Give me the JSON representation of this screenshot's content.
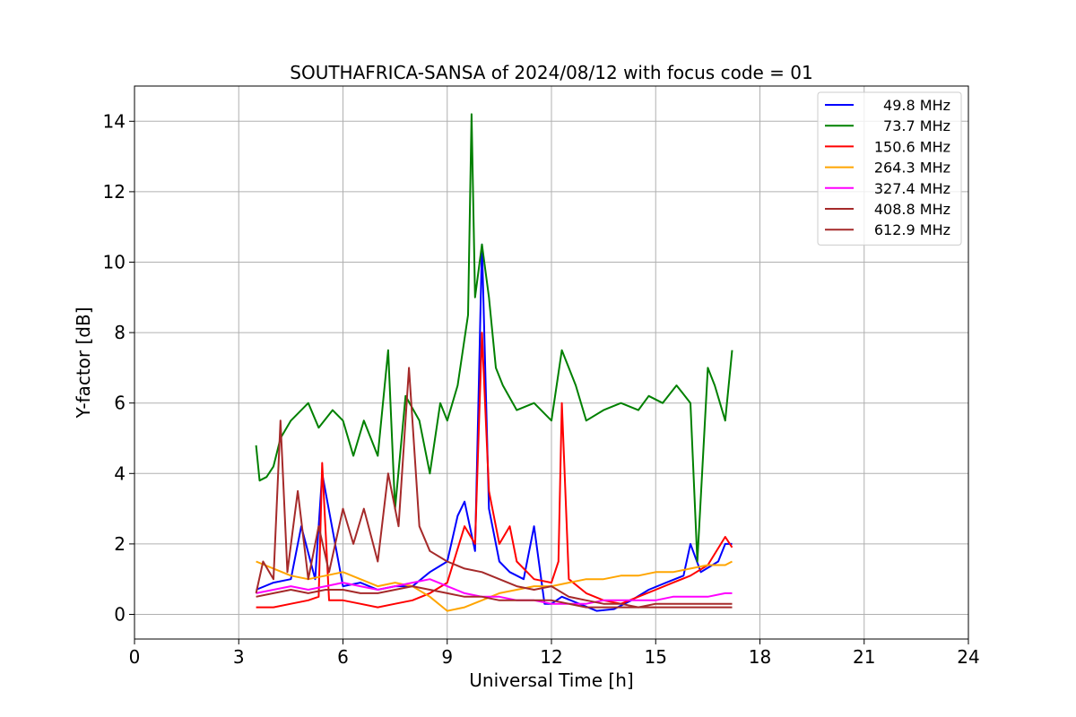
{
  "chart_data": {
    "type": "line",
    "title": "SOUTHAFRICA-SANSA of 2024/08/12 with focus code = 01",
    "xlabel": "Universal Time [h]",
    "ylabel": "Y-factor [dB]",
    "xlim": [
      0,
      24
    ],
    "ylim": [
      -0.7,
      15
    ],
    "xticks": [
      0,
      3,
      6,
      9,
      12,
      15,
      18,
      21,
      24
    ],
    "yticks": [
      0,
      2,
      4,
      6,
      8,
      10,
      12,
      14
    ],
    "grid": true,
    "legend_position": "top-right",
    "series": [
      {
        "name": "49.8 MHz",
        "color": "#0000ff",
        "x": [
          3.5,
          4.0,
          4.5,
          4.8,
          5.2,
          5.4,
          6.0,
          6.5,
          7.0,
          7.5,
          8.0,
          8.5,
          9.0,
          9.3,
          9.5,
          9.8,
          10.0,
          10.2,
          10.5,
          10.8,
          11.2,
          11.5,
          11.8,
          12.0,
          12.3,
          12.8,
          13.3,
          13.8,
          14.3,
          14.8,
          15.3,
          15.8,
          16.0,
          16.3,
          16.8,
          17.0,
          17.2
        ],
        "y": [
          0.7,
          0.9,
          1.0,
          2.5,
          1.0,
          4.0,
          0.8,
          0.9,
          0.7,
          0.8,
          0.8,
          1.2,
          1.5,
          2.8,
          3.2,
          1.8,
          10.5,
          3.0,
          1.5,
          1.2,
          1.0,
          2.5,
          0.3,
          0.3,
          0.5,
          0.3,
          0.1,
          0.15,
          0.4,
          0.7,
          0.9,
          1.1,
          2.0,
          1.2,
          1.5,
          2.0,
          2.0
        ]
      },
      {
        "name": "73.7 MHz",
        "color": "#008000",
        "x": [
          3.5,
          3.6,
          3.8,
          4.0,
          4.2,
          4.5,
          5.0,
          5.3,
          5.7,
          6.0,
          6.3,
          6.6,
          7.0,
          7.3,
          7.5,
          7.8,
          8.2,
          8.5,
          8.8,
          9.0,
          9.3,
          9.6,
          9.7,
          9.8,
          10.0,
          10.2,
          10.4,
          10.6,
          11.0,
          11.5,
          12.0,
          12.3,
          12.7,
          13.0,
          13.5,
          14.0,
          14.5,
          14.8,
          15.2,
          15.6,
          16.0,
          16.2,
          16.5,
          16.7,
          17.0,
          17.2
        ],
        "y": [
          4.8,
          3.8,
          3.9,
          4.2,
          5.0,
          5.5,
          6.0,
          5.3,
          5.8,
          5.5,
          4.5,
          5.5,
          4.5,
          7.5,
          3.0,
          6.2,
          5.5,
          4.0,
          6.0,
          5.5,
          6.5,
          8.5,
          14.2,
          9.0,
          10.5,
          9.0,
          7.0,
          6.5,
          5.8,
          6.0,
          5.5,
          7.5,
          6.5,
          5.5,
          5.8,
          6.0,
          5.8,
          6.2,
          6.0,
          6.5,
          6.0,
          1.5,
          7.0,
          6.5,
          5.5,
          7.5
        ]
      },
      {
        "name": "150.6 MHz",
        "color": "#ff0000",
        "x": [
          3.5,
          4.0,
          4.5,
          5.0,
          5.3,
          5.4,
          5.6,
          6.0,
          6.5,
          7.0,
          7.5,
          8.0,
          8.5,
          9.0,
          9.5,
          9.8,
          10.0,
          10.2,
          10.5,
          10.8,
          11.0,
          11.5,
          12.0,
          12.2,
          12.3,
          12.5,
          13.0,
          13.5,
          14.0,
          14.5,
          15.0,
          15.5,
          16.0,
          16.5,
          17.0,
          17.2
        ],
        "y": [
          0.2,
          0.2,
          0.3,
          0.4,
          0.5,
          4.3,
          0.4,
          0.4,
          0.3,
          0.2,
          0.3,
          0.4,
          0.6,
          0.9,
          2.5,
          2.0,
          8.0,
          3.5,
          2.0,
          2.5,
          1.5,
          1.0,
          0.9,
          1.5,
          6.0,
          1.0,
          0.6,
          0.4,
          0.3,
          0.5,
          0.7,
          0.9,
          1.1,
          1.4,
          2.2,
          1.9
        ]
      },
      {
        "name": "264.3 MHz",
        "color": "#ffa500",
        "x": [
          3.5,
          4.0,
          4.5,
          5.0,
          5.5,
          6.0,
          6.5,
          7.0,
          7.5,
          8.0,
          8.5,
          9.0,
          9.5,
          10.0,
          10.5,
          11.0,
          11.5,
          12.0,
          12.5,
          13.0,
          13.5,
          14.0,
          14.5,
          15.0,
          15.5,
          16.0,
          16.5,
          17.0,
          17.2
        ],
        "y": [
          1.5,
          1.3,
          1.1,
          1.0,
          1.1,
          1.2,
          1.0,
          0.8,
          0.9,
          0.8,
          0.5,
          0.1,
          0.2,
          0.4,
          0.6,
          0.7,
          0.8,
          0.8,
          0.9,
          1.0,
          1.0,
          1.1,
          1.1,
          1.2,
          1.2,
          1.3,
          1.4,
          1.4,
          1.5
        ]
      },
      {
        "name": "327.4 MHz",
        "color": "#ff00ff",
        "x": [
          3.5,
          4.0,
          4.5,
          5.0,
          5.5,
          6.0,
          6.5,
          7.0,
          7.5,
          8.0,
          8.5,
          9.0,
          9.5,
          10.0,
          10.5,
          11.0,
          11.5,
          12.0,
          12.5,
          13.0,
          13.5,
          14.0,
          14.5,
          15.0,
          15.5,
          16.0,
          16.5,
          17.0,
          17.2
        ],
        "y": [
          0.6,
          0.7,
          0.8,
          0.7,
          0.8,
          0.9,
          0.8,
          0.7,
          0.8,
          0.9,
          1.0,
          0.8,
          0.6,
          0.5,
          0.5,
          0.4,
          0.4,
          0.3,
          0.3,
          0.3,
          0.4,
          0.4,
          0.4,
          0.4,
          0.5,
          0.5,
          0.5,
          0.6,
          0.6
        ]
      },
      {
        "name": "408.8 MHz",
        "color": "#a52a2a",
        "x": [
          3.5,
          3.7,
          4.0,
          4.2,
          4.4,
          4.7,
          5.0,
          5.3,
          5.6,
          6.0,
          6.3,
          6.6,
          7.0,
          7.3,
          7.6,
          7.9,
          8.2,
          8.5,
          9.0,
          9.5,
          10.0,
          10.5,
          11.0,
          11.5,
          12.0,
          12.5,
          13.0,
          13.5,
          14.0,
          14.5,
          15.0,
          15.5,
          16.0,
          16.5,
          17.0,
          17.2
        ],
        "y": [
          0.6,
          1.5,
          1.0,
          5.5,
          1.2,
          3.5,
          1.0,
          2.5,
          1.2,
          3.0,
          2.0,
          3.0,
          1.5,
          4.0,
          2.5,
          7.0,
          2.5,
          1.8,
          1.5,
          1.3,
          1.2,
          1.0,
          0.8,
          0.7,
          0.8,
          0.5,
          0.4,
          0.3,
          0.3,
          0.2,
          0.3,
          0.3,
          0.3,
          0.3,
          0.3,
          0.3
        ]
      },
      {
        "name": "612.9 MHz",
        "color": "#a52a2a",
        "x": [
          3.5,
          4.0,
          4.5,
          5.0,
          5.5,
          6.0,
          6.5,
          7.0,
          7.5,
          8.0,
          8.5,
          9.0,
          9.5,
          10.0,
          10.5,
          11.0,
          11.5,
          12.0,
          12.5,
          13.0,
          13.5,
          14.0,
          14.5,
          15.0,
          15.5,
          16.0,
          16.5,
          17.0,
          17.2
        ],
        "y": [
          0.5,
          0.6,
          0.7,
          0.6,
          0.7,
          0.7,
          0.6,
          0.6,
          0.7,
          0.8,
          0.7,
          0.6,
          0.5,
          0.5,
          0.4,
          0.4,
          0.4,
          0.4,
          0.3,
          0.2,
          0.2,
          0.2,
          0.2,
          0.2,
          0.2,
          0.2,
          0.2,
          0.2,
          0.2
        ]
      }
    ]
  }
}
